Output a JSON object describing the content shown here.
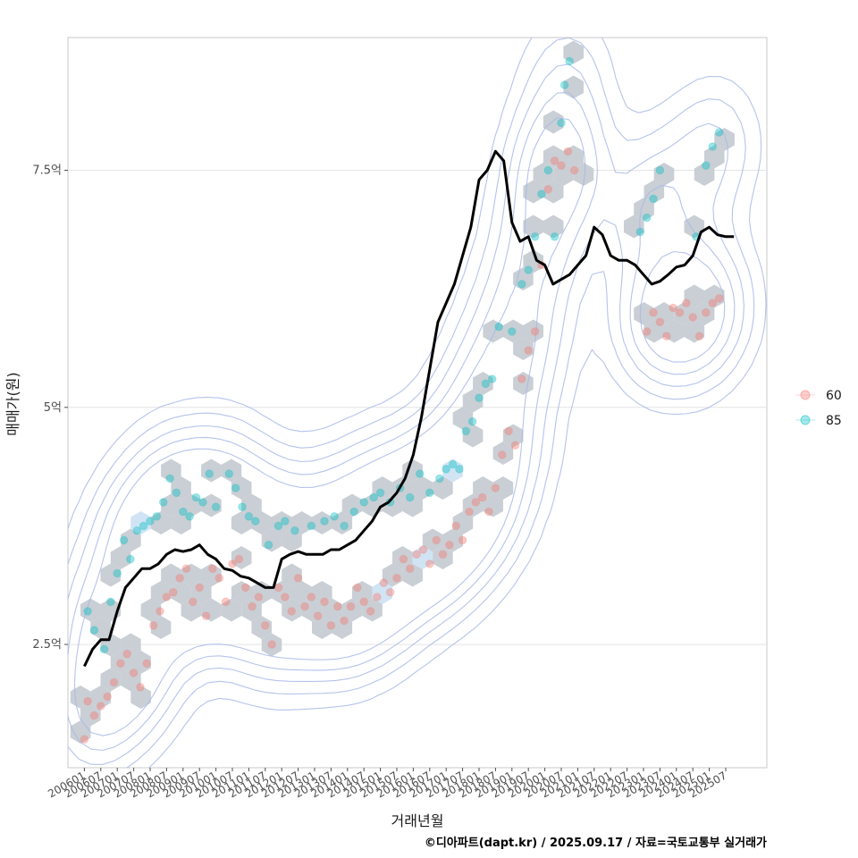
{
  "chart_data": {
    "type": "scatter",
    "xlabel": "거래년월",
    "ylabel": "매매가(원)",
    "caption": "©디아파트(dapt.kr) / 2025.09.17 / 자료=국토교통부 실거래가",
    "y_unit": "억",
    "ylim": [
      1.2,
      8.9
    ],
    "xlim": [
      2005.5,
      2026.75
    ],
    "y_ticks": [
      {
        "value": 2.5,
        "label": "2.5억"
      },
      {
        "value": 5,
        "label": "5억"
      },
      {
        "value": 7.5,
        "label": "7.5억"
      }
    ],
    "x_ticks": [
      "200601",
      "200607",
      "200701",
      "200707",
      "200801",
      "200807",
      "200901",
      "200907",
      "201001",
      "201007",
      "201101",
      "201107",
      "201201",
      "201207",
      "201301",
      "201307",
      "201401",
      "201407",
      "201501",
      "201507",
      "201601",
      "201607",
      "201701",
      "201707",
      "201801",
      "201807",
      "201901",
      "201907",
      "202001",
      "202007",
      "202101",
      "202107",
      "202201",
      "202207",
      "202301",
      "202307",
      "202401",
      "202407",
      "202501",
      "202507"
    ],
    "legend": {
      "position": "right",
      "items": [
        {
          "label": "60",
          "color": "#F8766D"
        },
        {
          "label": "85",
          "color": "#00BFC4"
        }
      ]
    },
    "trend_line": {
      "name": "moving average",
      "color": "#000000",
      "x": [
        2006.0,
        2006.25,
        2006.5,
        2006.75,
        2007.0,
        2007.25,
        2007.5,
        2007.75,
        2008.0,
        2008.25,
        2008.5,
        2008.75,
        2009.0,
        2009.25,
        2009.5,
        2009.75,
        2010.0,
        2010.25,
        2010.5,
        2010.75,
        2011.0,
        2011.25,
        2011.5,
        2011.75,
        2012.0,
        2012.25,
        2012.5,
        2012.75,
        2013.0,
        2013.25,
        2013.5,
        2013.75,
        2014.0,
        2014.25,
        2014.5,
        2014.75,
        2015.0,
        2015.25,
        2015.5,
        2015.75,
        2016.0,
        2016.25,
        2016.5,
        2016.75,
        2017.0,
        2017.25,
        2017.5,
        2017.75,
        2018.0,
        2018.25,
        2018.5,
        2018.75,
        2019.0,
        2019.25,
        2019.5,
        2019.75,
        2020.0,
        2020.25,
        2020.5,
        2020.75,
        2021.0,
        2021.25,
        2021.5,
        2021.75,
        2022.0,
        2022.25,
        2022.5,
        2022.75,
        2023.0,
        2023.25,
        2023.5,
        2023.75,
        2024.0,
        2024.25,
        2024.5,
        2024.75,
        2025.0,
        2025.25,
        2025.5,
        2025.75
      ],
      "y": [
        2.27,
        2.45,
        2.55,
        2.55,
        2.85,
        3.1,
        3.2,
        3.3,
        3.3,
        3.35,
        3.45,
        3.5,
        3.48,
        3.5,
        3.55,
        3.45,
        3.4,
        3.3,
        3.28,
        3.22,
        3.2,
        3.15,
        3.1,
        3.1,
        3.4,
        3.45,
        3.48,
        3.45,
        3.45,
        3.45,
        3.5,
        3.5,
        3.55,
        3.6,
        3.7,
        3.8,
        3.95,
        4.0,
        4.1,
        4.25,
        4.5,
        4.9,
        5.4,
        5.9,
        6.1,
        6.3,
        6.6,
        6.9,
        7.4,
        7.5,
        7.7,
        7.6,
        6.95,
        6.75,
        6.8,
        6.55,
        6.5,
        6.3,
        6.35,
        6.4,
        6.5,
        6.6,
        6.9,
        6.82,
        6.6,
        6.55,
        6.55,
        6.5,
        6.4,
        6.3,
        6.33,
        6.4,
        6.48,
        6.5,
        6.6,
        6.85,
        6.9,
        6.82,
        6.8,
        6.8
      ]
    },
    "series": [
      {
        "name": "60",
        "color": "#F8766D",
        "points": [
          [
            2006.0,
            1.5
          ],
          [
            2006.1,
            1.9
          ],
          [
            2006.3,
            1.75
          ],
          [
            2006.5,
            1.85
          ],
          [
            2006.7,
            1.95
          ],
          [
            2006.9,
            2.1
          ],
          [
            2007.1,
            2.3
          ],
          [
            2007.3,
            2.4
          ],
          [
            2007.5,
            2.2
          ],
          [
            2007.7,
            2.05
          ],
          [
            2007.9,
            2.3
          ],
          [
            2008.1,
            2.7
          ],
          [
            2008.3,
            2.85
          ],
          [
            2008.5,
            3.0
          ],
          [
            2008.7,
            3.05
          ],
          [
            2008.9,
            3.2
          ],
          [
            2009.1,
            3.3
          ],
          [
            2009.3,
            2.95
          ],
          [
            2009.5,
            3.1
          ],
          [
            2009.7,
            2.8
          ],
          [
            2009.9,
            3.3
          ],
          [
            2010.1,
            3.2
          ],
          [
            2010.3,
            2.95
          ],
          [
            2010.5,
            3.35
          ],
          [
            2010.7,
            3.4
          ],
          [
            2010.9,
            3.1
          ],
          [
            2011.1,
            2.9
          ],
          [
            2011.3,
            3.0
          ],
          [
            2011.5,
            2.7
          ],
          [
            2011.7,
            2.5
          ],
          [
            2011.9,
            3.1
          ],
          [
            2012.1,
            3.0
          ],
          [
            2012.3,
            2.85
          ],
          [
            2012.5,
            3.2
          ],
          [
            2012.7,
            2.9
          ],
          [
            2012.9,
            3.0
          ],
          [
            2013.1,
            2.8
          ],
          [
            2013.3,
            2.95
          ],
          [
            2013.5,
            2.7
          ],
          [
            2013.7,
            2.9
          ],
          [
            2013.9,
            2.75
          ],
          [
            2014.1,
            2.9
          ],
          [
            2014.3,
            3.1
          ],
          [
            2014.5,
            2.95
          ],
          [
            2014.7,
            2.85
          ],
          [
            2014.9,
            3.0
          ],
          [
            2015.1,
            3.15
          ],
          [
            2015.3,
            3.05
          ],
          [
            2015.5,
            3.2
          ],
          [
            2015.7,
            3.4
          ],
          [
            2015.9,
            3.3
          ],
          [
            2016.1,
            3.45
          ],
          [
            2016.3,
            3.5
          ],
          [
            2016.5,
            3.35
          ],
          [
            2016.7,
            3.6
          ],
          [
            2016.9,
            3.45
          ],
          [
            2017.1,
            3.55
          ],
          [
            2017.3,
            3.75
          ],
          [
            2017.5,
            3.6
          ],
          [
            2017.7,
            3.9
          ],
          [
            2017.9,
            4.0
          ],
          [
            2018.1,
            4.05
          ],
          [
            2018.3,
            3.9
          ],
          [
            2018.5,
            4.15
          ],
          [
            2018.7,
            4.5
          ],
          [
            2018.9,
            4.75
          ],
          [
            2019.1,
            4.6
          ],
          [
            2019.3,
            5.3
          ],
          [
            2019.5,
            5.6
          ],
          [
            2019.7,
            5.8
          ],
          [
            2019.9,
            6.5
          ],
          [
            2020.1,
            7.3
          ],
          [
            2020.3,
            7.6
          ],
          [
            2020.5,
            7.55
          ],
          [
            2020.7,
            7.7
          ],
          [
            2020.9,
            7.5
          ],
          [
            2023.1,
            5.8
          ],
          [
            2023.3,
            6.0
          ],
          [
            2023.5,
            5.9
          ],
          [
            2023.7,
            5.75
          ],
          [
            2023.9,
            6.05
          ],
          [
            2024.1,
            6.0
          ],
          [
            2024.3,
            6.1
          ],
          [
            2024.5,
            5.95
          ],
          [
            2024.7,
            5.75
          ],
          [
            2024.9,
            6.0
          ],
          [
            2025.1,
            6.1
          ],
          [
            2025.3,
            6.15
          ]
        ]
      },
      {
        "name": "85",
        "color": "#00BFC4",
        "points": [
          [
            2006.1,
            2.85
          ],
          [
            2006.3,
            2.65
          ],
          [
            2006.6,
            2.45
          ],
          [
            2006.8,
            2.95
          ],
          [
            2007.0,
            3.25
          ],
          [
            2007.2,
            3.6
          ],
          [
            2007.4,
            3.4
          ],
          [
            2007.6,
            3.7
          ],
          [
            2007.8,
            3.75
          ],
          [
            2008.0,
            3.8
          ],
          [
            2008.2,
            3.85
          ],
          [
            2008.4,
            4.0
          ],
          [
            2008.6,
            4.25
          ],
          [
            2008.8,
            4.1
          ],
          [
            2009.0,
            3.9
          ],
          [
            2009.2,
            3.85
          ],
          [
            2009.4,
            4.05
          ],
          [
            2009.6,
            4.0
          ],
          [
            2009.8,
            4.3
          ],
          [
            2010.0,
            3.95
          ],
          [
            2010.4,
            4.3
          ],
          [
            2010.6,
            4.15
          ],
          [
            2010.8,
            3.95
          ],
          [
            2011.0,
            3.85
          ],
          [
            2011.2,
            3.8
          ],
          [
            2011.6,
            3.55
          ],
          [
            2011.9,
            3.75
          ],
          [
            2012.1,
            3.8
          ],
          [
            2012.4,
            3.7
          ],
          [
            2012.9,
            3.75
          ],
          [
            2013.3,
            3.8
          ],
          [
            2013.6,
            3.85
          ],
          [
            2013.9,
            3.75
          ],
          [
            2014.2,
            3.9
          ],
          [
            2014.5,
            4.0
          ],
          [
            2014.8,
            4.05
          ],
          [
            2015.0,
            4.1
          ],
          [
            2015.3,
            4.0
          ],
          [
            2015.6,
            4.15
          ],
          [
            2015.9,
            4.05
          ],
          [
            2016.2,
            4.3
          ],
          [
            2016.5,
            4.1
          ],
          [
            2016.8,
            4.25
          ],
          [
            2017.0,
            4.35
          ],
          [
            2017.2,
            4.4
          ],
          [
            2017.4,
            4.35
          ],
          [
            2017.6,
            4.75
          ],
          [
            2017.8,
            4.85
          ],
          [
            2018.0,
            5.1
          ],
          [
            2018.2,
            5.25
          ],
          [
            2018.4,
            5.3
          ],
          [
            2018.6,
            5.85
          ],
          [
            2019.0,
            5.8
          ],
          [
            2019.3,
            6.3
          ],
          [
            2019.5,
            6.45
          ],
          [
            2019.7,
            6.8
          ],
          [
            2019.9,
            7.25
          ],
          [
            2020.1,
            7.5
          ],
          [
            2020.3,
            6.8
          ],
          [
            2020.5,
            8.0
          ],
          [
            2020.6,
            8.4
          ],
          [
            2020.75,
            8.65
          ],
          [
            2022.9,
            6.85
          ],
          [
            2023.1,
            7.0
          ],
          [
            2023.3,
            7.2
          ],
          [
            2023.5,
            7.5
          ],
          [
            2024.6,
            6.8
          ],
          [
            2024.9,
            7.55
          ],
          [
            2025.1,
            7.75
          ],
          [
            2025.3,
            7.9
          ]
        ]
      }
    ]
  }
}
